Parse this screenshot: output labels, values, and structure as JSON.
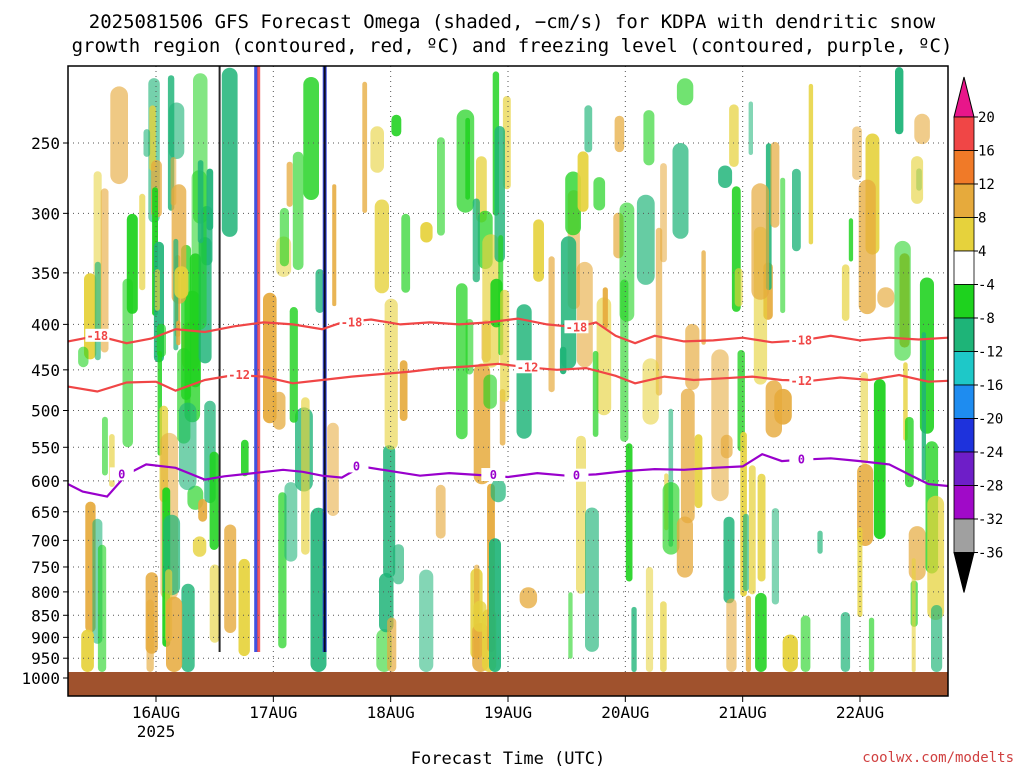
{
  "chart_data": {
    "type": "heatmap",
    "title_line1": "2025081506 GFS Forecast Omega (shaded, −cm/s) for KDPA with dendritic snow",
    "title_line2": "growth region (contoured, red, ºC) and freezing level (contoured, purple, ºC)",
    "xlabel": "Forecast Time (UTC)",
    "ylabel": "",
    "credit": "coolwx.com/modelts",
    "x_ticks": [
      {
        "label": "16AUG",
        "sub": "2025",
        "hour": 18
      },
      {
        "label": "17AUG",
        "sub": "",
        "hour": 42
      },
      {
        "label": "18AUG",
        "sub": "",
        "hour": 66
      },
      {
        "label": "19AUG",
        "sub": "",
        "hour": 90
      },
      {
        "label": "20AUG",
        "sub": "",
        "hour": 114
      },
      {
        "label": "21AUG",
        "sub": "",
        "hour": 138
      },
      {
        "label": "22AUG",
        "sub": "",
        "hour": 162
      }
    ],
    "x_range_hours": [
      0,
      180
    ],
    "y_scale": "log-pressure",
    "y_range_hPa": [
      1000,
      200
    ],
    "y_ticks": [
      250,
      300,
      350,
      400,
      450,
      500,
      550,
      600,
      650,
      700,
      750,
      800,
      850,
      900,
      950,
      1000
    ],
    "grid": true,
    "colorbar": {
      "labels": [
        "20",
        "16",
        "12",
        "8",
        "4",
        "-4",
        "-8",
        "-12",
        "-16",
        "-20",
        "-24",
        "-28",
        "-32",
        "-36"
      ],
      "colors": [
        "#e8168a",
        "#f04646",
        "#f07a28",
        "#e6aa3c",
        "#e6d23c",
        "#ffffff",
        "#1ed21e",
        "#1eb478",
        "#1ec8c8",
        "#1e8cf0",
        "#1e32dc",
        "#6e1ec8",
        "#a00ac8",
        "#a0a0a0",
        "#000000"
      ]
    },
    "ground_color": "#a0522d",
    "contours": [
      {
        "name": "-18",
        "color": "#f04646",
        "points": [
          [
            0,
            418
          ],
          [
            6,
            412
          ],
          [
            12,
            420
          ],
          [
            17,
            415
          ],
          [
            22,
            405
          ],
          [
            28,
            408
          ],
          [
            34,
            402
          ],
          [
            40,
            398
          ],
          [
            46,
            400
          ],
          [
            52,
            405
          ],
          [
            56,
            398
          ],
          [
            62,
            395
          ],
          [
            68,
            400
          ],
          [
            74,
            398
          ],
          [
            80,
            400
          ],
          [
            86,
            398
          ],
          [
            92,
            394
          ],
          [
            98,
            400
          ],
          [
            104,
            403
          ],
          [
            108,
            398
          ],
          [
            112,
            412
          ],
          [
            116,
            420
          ],
          [
            120,
            412
          ],
          [
            126,
            418
          ],
          [
            132,
            417
          ],
          [
            138,
            414
          ],
          [
            144,
            419
          ],
          [
            150,
            417
          ],
          [
            156,
            412
          ],
          [
            162,
            417
          ],
          [
            168,
            414
          ],
          [
            174,
            416
          ],
          [
            180,
            414
          ]
        ],
        "labels": [
          [
            6,
            "-18"
          ],
          [
            58,
            "-18"
          ],
          [
            104,
            "-18"
          ],
          [
            150,
            "-18"
          ]
        ]
      },
      {
        "name": "-12",
        "color": "#f04646",
        "points": [
          [
            0,
            470
          ],
          [
            6,
            476
          ],
          [
            12,
            465
          ],
          [
            18,
            464
          ],
          [
            22,
            475
          ],
          [
            28,
            462
          ],
          [
            34,
            456
          ],
          [
            40,
            458
          ],
          [
            46,
            466
          ],
          [
            52,
            462
          ],
          [
            58,
            458
          ],
          [
            64,
            455
          ],
          [
            70,
            452
          ],
          [
            76,
            448
          ],
          [
            82,
            446
          ],
          [
            88,
            443
          ],
          [
            94,
            447
          ],
          [
            100,
            450
          ],
          [
            106,
            448
          ],
          [
            112,
            457
          ],
          [
            116,
            466
          ],
          [
            122,
            458
          ],
          [
            128,
            462
          ],
          [
            134,
            460
          ],
          [
            140,
            458
          ],
          [
            146,
            462
          ],
          [
            152,
            463
          ],
          [
            158,
            459
          ],
          [
            164,
            462
          ],
          [
            170,
            456
          ],
          [
            176,
            464
          ],
          [
            180,
            463
          ]
        ],
        "labels": [
          [
            35,
            "-12"
          ],
          [
            94,
            "-12"
          ],
          [
            150,
            "-12"
          ]
        ]
      },
      {
        "name": "0",
        "color": "#9900cc",
        "points": [
          [
            0,
            605
          ],
          [
            3,
            617
          ],
          [
            8,
            625
          ],
          [
            12,
            590
          ],
          [
            16,
            575
          ],
          [
            22,
            580
          ],
          [
            28,
            598
          ],
          [
            32,
            593
          ],
          [
            38,
            588
          ],
          [
            44,
            583
          ],
          [
            48,
            586
          ],
          [
            52,
            592
          ],
          [
            56,
            595
          ],
          [
            60,
            578
          ],
          [
            66,
            585
          ],
          [
            72,
            592
          ],
          [
            78,
            588
          ],
          [
            84,
            591
          ],
          [
            90,
            594
          ],
          [
            96,
            588
          ],
          [
            102,
            592
          ],
          [
            108,
            590
          ],
          [
            114,
            585
          ],
          [
            120,
            582
          ],
          [
            126,
            583
          ],
          [
            132,
            580
          ],
          [
            138,
            578
          ],
          [
            142,
            560
          ],
          [
            146,
            570
          ],
          [
            150,
            568
          ],
          [
            156,
            566
          ],
          [
            162,
            570
          ],
          [
            168,
            575
          ],
          [
            172,
            590
          ],
          [
            176,
            605
          ],
          [
            180,
            608
          ]
        ],
        "labels": [
          [
            11,
            "0"
          ],
          [
            59,
            "0"
          ],
          [
            87,
            "0"
          ],
          [
            104,
            "0"
          ],
          [
            150,
            "0"
          ]
        ]
      }
    ]
  }
}
